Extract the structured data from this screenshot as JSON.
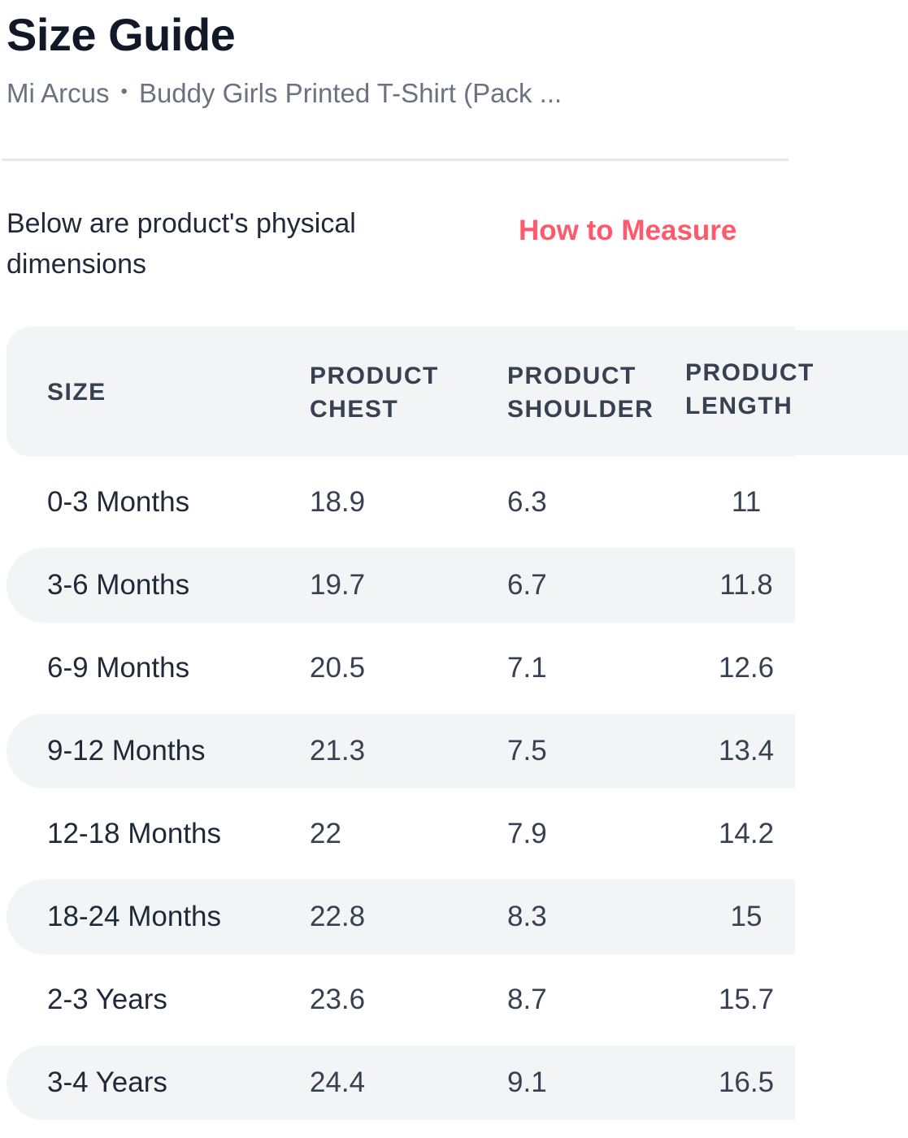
{
  "header": {
    "title": "Size Guide",
    "brand": "Mi Arcus",
    "separator": "•",
    "product_name": "Buddy Girls Printed T-Shirt (Pack ..."
  },
  "intro": {
    "text": "Below are product's physical dimensions",
    "measure_link": "How to Measure"
  },
  "colors": {
    "accent": "#ff5a6b",
    "row_shade": "#f3f4f6",
    "text": "#1f2937",
    "muted": "#6b7280"
  },
  "table": {
    "headers": {
      "size": "SIZE",
      "chest": "PRODUCT CHEST",
      "shoulder": "PRODUCT SHOULDER",
      "length": "PRODUCT LENGTH"
    },
    "rows": [
      {
        "size": "0-3 Months",
        "chest": "18.9",
        "shoulder": "6.3",
        "length": "11"
      },
      {
        "size": "3-6 Months",
        "chest": "19.7",
        "shoulder": "6.7",
        "length": "11.8"
      },
      {
        "size": "6-9 Months",
        "chest": "20.5",
        "shoulder": "7.1",
        "length": "12.6"
      },
      {
        "size": "9-12 Months",
        "chest": "21.3",
        "shoulder": "7.5",
        "length": "13.4"
      },
      {
        "size": "12-18 Months",
        "chest": "22",
        "shoulder": "7.9",
        "length": "14.2"
      },
      {
        "size": "18-24 Months",
        "chest": "22.8",
        "shoulder": "8.3",
        "length": "15"
      },
      {
        "size": "2-3 Years",
        "chest": "23.6",
        "shoulder": "8.7",
        "length": "15.7"
      },
      {
        "size": "3-4 Years",
        "chest": "24.4",
        "shoulder": "9.1",
        "length": "16.5"
      }
    ]
  }
}
